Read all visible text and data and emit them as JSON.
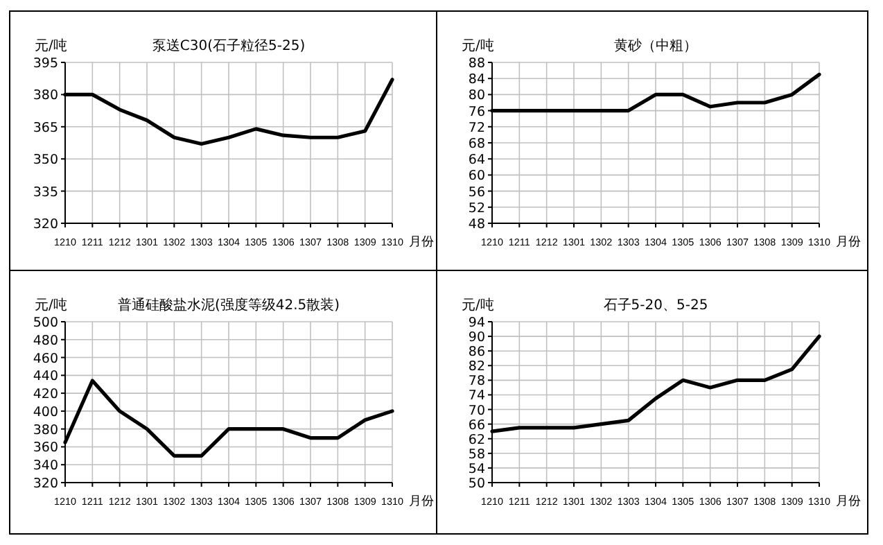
{
  "chart_data": [
    {
      "type": "line",
      "title": "泵送C30(石子粒径5-25)",
      "ylabel": "元/吨",
      "xlabel": "月份",
      "categories": [
        "1210",
        "1211",
        "1212",
        "1301",
        "1302",
        "1303",
        "1304",
        "1305",
        "1306",
        "1307",
        "1308",
        "1309",
        "1310"
      ],
      "series": [
        {
          "color": "#000000",
          "values": [
            380,
            380,
            373,
            368,
            360,
            357,
            360,
            364,
            361,
            360,
            360,
            363,
            387
          ]
        }
      ],
      "ylim": [
        320,
        395
      ],
      "yticks": [
        320,
        335,
        350,
        365,
        380,
        395
      ],
      "grid": true
    },
    {
      "type": "line",
      "title": "黄砂（中粗）",
      "ylabel": "元/吨",
      "xlabel": "月份",
      "categories": [
        "1210",
        "1211",
        "1212",
        "1301",
        "1302",
        "1303",
        "1304",
        "1305",
        "1306",
        "1307",
        "1308",
        "1309",
        "1310"
      ],
      "series": [
        {
          "color": "#000000",
          "values": [
            76,
            76,
            76,
            76,
            76,
            76,
            80,
            80,
            77,
            78,
            78,
            80,
            85
          ]
        }
      ],
      "ylim": [
        48,
        88
      ],
      "yticks": [
        48,
        52,
        56,
        60,
        64,
        68,
        72,
        76,
        80,
        84,
        88
      ],
      "grid": true
    },
    {
      "type": "line",
      "title": "普通硅酸盐水泥(强度等级42.5散装)",
      "ylabel": "元/吨",
      "xlabel": "月份",
      "categories": [
        "1210",
        "1211",
        "1212",
        "1301",
        "1302",
        "1303",
        "1304",
        "1305",
        "1306",
        "1307",
        "1308",
        "1309",
        "1310"
      ],
      "series": [
        {
          "color": "#000000",
          "values": [
            365,
            434,
            400,
            380,
            350,
            350,
            380,
            380,
            380,
            370,
            370,
            390,
            400
          ]
        }
      ],
      "ylim": [
        320,
        500
      ],
      "yticks": [
        320,
        340,
        360,
        380,
        400,
        420,
        440,
        460,
        480,
        500
      ],
      "grid": true
    },
    {
      "type": "line",
      "title": "石子5-20、5-25",
      "ylabel": "元/吨",
      "xlabel": "月份",
      "categories": [
        "1210",
        "1211",
        "1212",
        "1301",
        "1302",
        "1303",
        "1304",
        "1305",
        "1306",
        "1307",
        "1308",
        "1309",
        "1310"
      ],
      "series": [
        {
          "color": "#000000",
          "values": [
            64,
            65,
            65,
            65,
            66,
            67,
            73,
            78,
            76,
            78,
            78,
            81,
            90
          ]
        }
      ],
      "ylim": [
        50,
        94
      ],
      "yticks": [
        50,
        54,
        58,
        62,
        66,
        70,
        74,
        78,
        82,
        86,
        90,
        94
      ],
      "grid": true
    }
  ]
}
